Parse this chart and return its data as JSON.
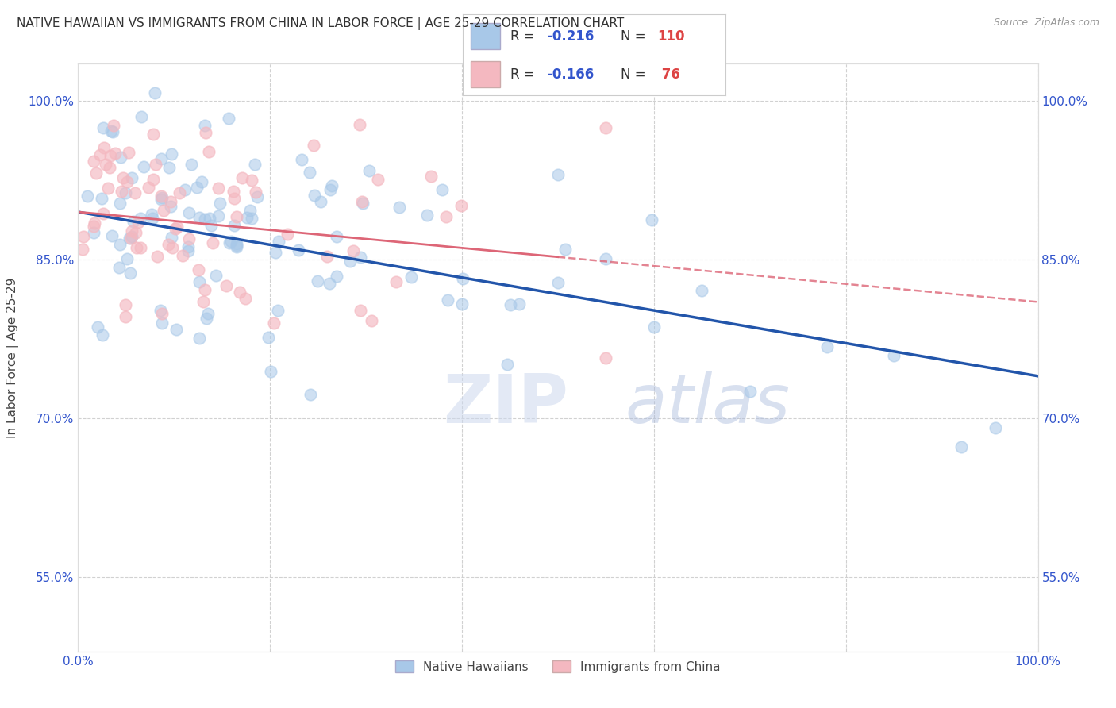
{
  "title": "NATIVE HAWAIIAN VS IMMIGRANTS FROM CHINA IN LABOR FORCE | AGE 25-29 CORRELATION CHART",
  "source": "Source: ZipAtlas.com",
  "ylabel": "In Labor Force | Age 25-29",
  "x_min": 0.0,
  "x_max": 1.0,
  "y_min": 0.48,
  "y_max": 1.035,
  "x_ticks": [
    0.0,
    0.2,
    0.4,
    0.6,
    0.8,
    1.0
  ],
  "x_tick_labels": [
    "0.0%",
    "",
    "",
    "",
    "",
    "100.0%"
  ],
  "y_ticks": [
    0.55,
    0.7,
    0.85,
    1.0
  ],
  "y_tick_labels": [
    "55.0%",
    "70.0%",
    "85.0%",
    "100.0%"
  ],
  "blue_color": "#a8c8e8",
  "pink_color": "#f4b8c0",
  "blue_line_color": "#2255aa",
  "pink_line_color": "#dd6677",
  "legend_blue_r": "-0.216",
  "legend_blue_n": "110",
  "legend_pink_r": "-0.166",
  "legend_pink_n": " 76",
  "watermark_zip": "ZIP",
  "watermark_atlas": "atlas",
  "blue_intercept": 0.895,
  "blue_slope": -0.155,
  "pink_intercept": 0.895,
  "pink_slope": -0.085,
  "grid_color": "#cccccc",
  "background_color": "#ffffff",
  "title_fontsize": 11,
  "axis_label_color": "#3355cc",
  "tick_label_color": "#3355cc",
  "legend_r_color": "#3355cc",
  "legend_n_color": "#dd4444"
}
